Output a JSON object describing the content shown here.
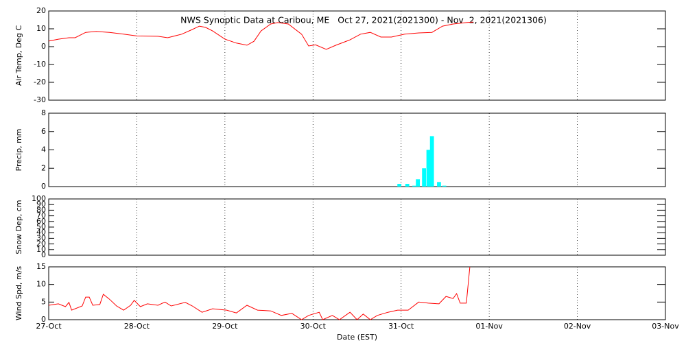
{
  "chart_data": [
    {
      "type": "line",
      "title": "NWS Synoptic Data at Caribou, ME   Oct 27, 2021(2021300) - Nov  2, 2021(2021306)",
      "ylabel": "Air Temp, Deg C",
      "color": "#ff0000",
      "ylim": [
        -30,
        20
      ],
      "yticks": [
        -30,
        -20,
        -10,
        0,
        10,
        20
      ],
      "x": [
        0,
        0.11,
        0.23,
        0.3,
        0.42,
        0.54,
        0.69,
        0.85,
        1.0,
        1.24,
        1.35,
        1.51,
        1.63,
        1.71,
        1.78,
        1.86,
        2.0,
        2.13,
        2.25,
        2.33,
        2.41,
        2.52,
        2.6,
        2.72,
        2.87,
        2.95,
        3.03,
        3.15,
        3.26,
        3.42,
        3.54,
        3.65,
        3.77,
        3.89,
        4.04,
        4.2,
        4.35,
        4.47,
        4.59,
        4.74,
        4.82
      ],
      "values": [
        3.1,
        4.2,
        5,
        5,
        8,
        8.5,
        8,
        7,
        6,
        5.8,
        5,
        7,
        9.6,
        11.5,
        10.8,
        8.8,
        4.2,
        2,
        0.8,
        3,
        8.8,
        12.7,
        13.5,
        12.7,
        7,
        0.4,
        1,
        -1.5,
        0.8,
        3.8,
        7,
        8,
        5.4,
        5.4,
        7,
        7.7,
        8,
        11.5,
        12.7,
        13.5,
        13.8
      ]
    },
    {
      "type": "bar",
      "ylabel": "Precip, mm",
      "color": "#00ffff",
      "ylim": [
        0,
        8
      ],
      "yticks": [
        0,
        2,
        4,
        6,
        8
      ],
      "x": [
        3.98,
        4.07,
        4.15,
        4.19,
        4.26,
        4.31,
        4.35,
        4.43,
        4.49
      ],
      "values": [
        0.3,
        0.3,
        0.1,
        0.8,
        2,
        4,
        5.5,
        0.5,
        0.1
      ]
    },
    {
      "type": "line",
      "ylabel": "Snow Dep, cm",
      "color": "#ff0000",
      "ylim": [
        0,
        100
      ],
      "yticks": [
        0,
        10,
        20,
        30,
        40,
        50,
        60,
        70,
        80,
        90,
        100
      ],
      "x": [],
      "values": []
    },
    {
      "type": "line",
      "ylabel": "Wind Spd, m/s",
      "xlabel": "Date (EST)",
      "color": "#ff0000",
      "ylim": [
        0,
        15
      ],
      "yticks": [
        0,
        5,
        10,
        15
      ],
      "xlim": [
        0,
        7
      ],
      "xticks": [
        {
          "value": 0,
          "label": "27-Oct"
        },
        {
          "value": 1,
          "label": "28-Oct"
        },
        {
          "value": 2,
          "label": "29-Oct"
        },
        {
          "value": 3,
          "label": "30-Oct"
        },
        {
          "value": 4,
          "label": "31-Oct"
        },
        {
          "value": 5,
          "label": "01-Nov"
        },
        {
          "value": 6,
          "label": "02-Nov"
        },
        {
          "value": 7,
          "label": "03-Nov"
        }
      ],
      "x": [
        0,
        0.11,
        0.19,
        0.23,
        0.26,
        0.38,
        0.42,
        0.46,
        0.5,
        0.58,
        0.62,
        0.69,
        0.77,
        0.85,
        0.93,
        0.97,
        1.04,
        1.12,
        1.24,
        1.32,
        1.39,
        1.55,
        1.63,
        1.74,
        1.86,
        2.02,
        2.13,
        2.25,
        2.37,
        2.52,
        2.64,
        2.76,
        2.87,
        2.95,
        3.07,
        3.11,
        3.22,
        3.3,
        3.42,
        3.5,
        3.57,
        3.65,
        3.73,
        3.85,
        3.96,
        4.08,
        4.2,
        4.31,
        4.43,
        4.51,
        4.59,
        4.63,
        4.67,
        4.74,
        4.78
      ],
      "values": [
        4.1,
        4.5,
        3.7,
        4.9,
        2.7,
        3.9,
        6.4,
        6.4,
        4.1,
        4.3,
        7.2,
        5.8,
        3.9,
        2.7,
        4.1,
        5.5,
        3.7,
        4.5,
        4.1,
        5,
        3.9,
        4.9,
        3.9,
        2.1,
        3.1,
        2.7,
        1.9,
        4.1,
        2.7,
        2.5,
        1.2,
        1.8,
        0,
        1.2,
        2.1,
        0,
        1.2,
        0,
        2.1,
        0,
        1.6,
        0,
        1.2,
        2.1,
        2.7,
        2.7,
        5,
        4.7,
        4.5,
        6.6,
        6,
        7.4,
        4.7,
        4.7,
        15
      ]
    }
  ]
}
